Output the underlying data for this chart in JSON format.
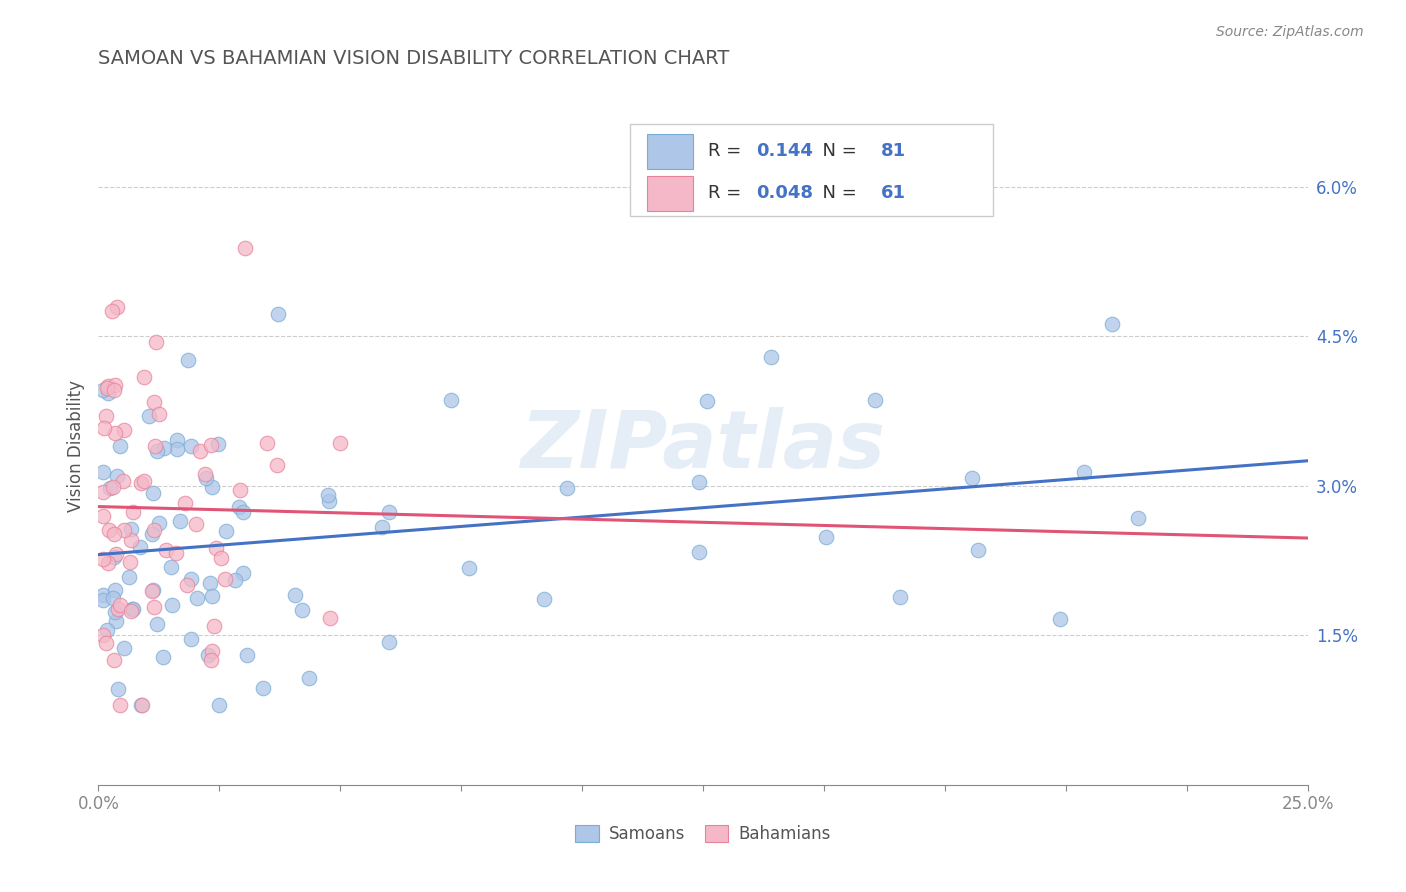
{
  "title": "SAMOAN VS BAHAMIAN VISION DISABILITY CORRELATION CHART",
  "source_text": "Source: ZipAtlas.com",
  "ylabel": "Vision Disability",
  "xlim": [
    0.0,
    0.25
  ],
  "ylim": [
    0.0,
    0.068
  ],
  "xtick_positions": [
    0.0,
    0.025,
    0.05,
    0.075,
    0.1,
    0.125,
    0.15,
    0.175,
    0.2,
    0.225,
    0.25
  ],
  "xtick_labels": [
    "0.0%",
    "",
    "",
    "",
    "",
    "",
    "",
    "",
    "",
    "",
    "25.0%"
  ],
  "ytick_positions": [
    0.015,
    0.03,
    0.045,
    0.06
  ],
  "ytick_labels": [
    "1.5%",
    "3.0%",
    "4.5%",
    "6.0%"
  ],
  "samoan_color": "#aec6e8",
  "bahamian_color": "#f4b8c8",
  "samoan_edge_color": "#7aadd4",
  "bahamian_edge_color": "#e8829a",
  "samoan_line_color": "#4472c4",
  "bahamian_line_color": "#e05575",
  "legend_R_samoan": "0.144",
  "legend_N_samoan": "81",
  "legend_R_bahamian": "0.048",
  "legend_N_bahamian": "61",
  "watermark": "ZIPatlas",
  "background_color": "#ffffff",
  "grid_color": "#c8c8c8",
  "title_color": "#555555",
  "axis_color": "#888888",
  "label_color": "#4472c4",
  "legend_text_color": "#333333",
  "legend_value_color": "#4472c4",
  "source_color": "#888888"
}
